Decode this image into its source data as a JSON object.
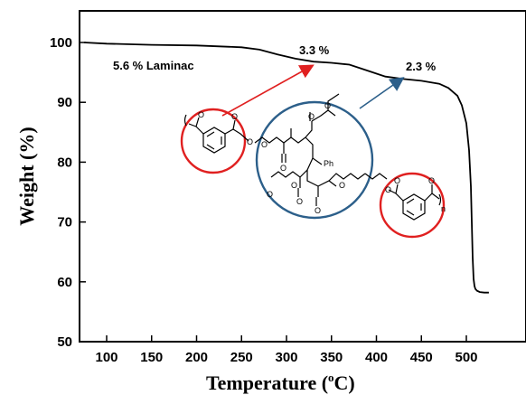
{
  "chart_data": {
    "type": "line",
    "xlabel": "Temperature (",
    "xlabel_sup": "o",
    "xlabel_unit": "C)",
    "ylabel": "Weight (%)",
    "xlim": [
      75,
      525
    ],
    "ylim": [
      50,
      105
    ],
    "xticks": [
      100,
      150,
      200,
      250,
      300,
      350,
      400,
      450,
      500
    ],
    "yticks": [
      50,
      60,
      70,
      80,
      90,
      100
    ],
    "grid": false,
    "series": [
      {
        "x": [
          75,
          100,
          150,
          200,
          250,
          270,
          290,
          310,
          330,
          350,
          370,
          390,
          410,
          430,
          450,
          470,
          480,
          490,
          495,
          500,
          503,
          505,
          506,
          507,
          508,
          509,
          510,
          512,
          515,
          520,
          525
        ],
        "y": [
          100.0,
          99.8,
          99.6,
          99.5,
          99.2,
          98.8,
          98.0,
          97.3,
          96.8,
          96.6,
          96.3,
          95.3,
          94.3,
          93.9,
          93.6,
          93.1,
          92.4,
          91.1,
          89.5,
          86.5,
          82.0,
          76.0,
          70.0,
          64.0,
          60.5,
          59.3,
          58.8,
          58.5,
          58.3,
          58.2,
          58.2
        ],
        "color": "#000000"
      }
    ],
    "annotations": [
      "5.6 % Laminac",
      "3.3 %",
      "2.3 %"
    ]
  },
  "structure": {
    "ph_label": "Ph",
    "n_label": "n",
    "circle_colors": {
      "red": "#e02020",
      "blue": "#2c5f8a"
    }
  }
}
